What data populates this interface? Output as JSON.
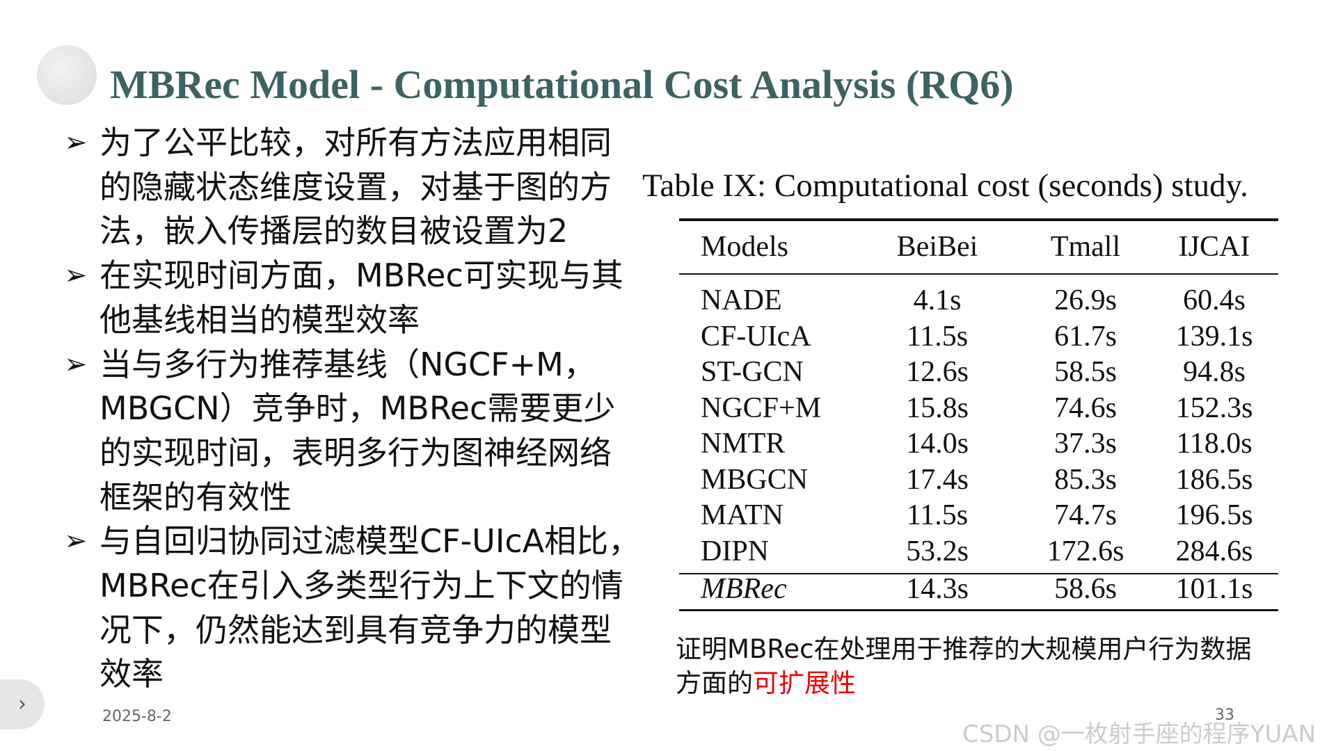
{
  "slide": {
    "title": "MBRec Model - Computational Cost Analysis (RQ6)",
    "bullets": [
      {
        "lines": [
          "为了公平比较，对所有方法应用相同",
          "的隐藏状态维度设置，对基于图的方",
          "法，嵌入传播层的数目被设置为2"
        ]
      },
      {
        "lines": [
          "在实现时间方面，MBRec可实现与其",
          "他基线相当的模型效率"
        ]
      },
      {
        "lines": [
          "当与多行为推荐基线（NGCF+M，",
          "MBGCN）竞争时，MBRec需要更少",
          "的实现时间，表明多行为图神经网络",
          "框架的有效性"
        ]
      },
      {
        "lines": [
          "与自回归协同过滤模型CF-UIcA相比，",
          "MBRec在引入多类型行为上下文的情",
          "况下，仍然能达到具有竞争力的模型",
          "效率"
        ]
      }
    ],
    "table": {
      "caption": "Table IX: Computational cost (seconds) study.",
      "header": [
        "Models",
        "BeiBei",
        "Tmall",
        "IJCAI"
      ],
      "rows": [
        [
          "NADE",
          "4.1s",
          "26.9s",
          "60.4s"
        ],
        [
          "CF-UIcA",
          "11.5s",
          "61.7s",
          "139.1s"
        ],
        [
          "ST-GCN",
          "12.6s",
          "58.5s",
          "94.8s"
        ],
        [
          "NGCF+M",
          "15.8s",
          "74.6s",
          "152.3s"
        ],
        [
          "NMTR",
          "14.0s",
          "37.3s",
          "118.0s"
        ],
        [
          "MBGCN",
          "17.4s",
          "85.3s",
          "186.5s"
        ],
        [
          "MATN",
          "11.5s",
          "74.7s",
          "196.5s"
        ],
        [
          "DIPN",
          "53.2s",
          "172.6s",
          "284.6s"
        ],
        [
          "MBRec",
          "14.3s",
          "58.6s",
          "101.1s"
        ]
      ]
    },
    "note": {
      "lines": [
        "证明MBRec在处理用于推荐的大规模用户行为数据",
        "方面的"
      ],
      "highlight": "可扩展性"
    },
    "date": "2025-8-2",
    "page_number": "33",
    "watermark": "CSDN @一枚射手座的程序YUAN"
  }
}
